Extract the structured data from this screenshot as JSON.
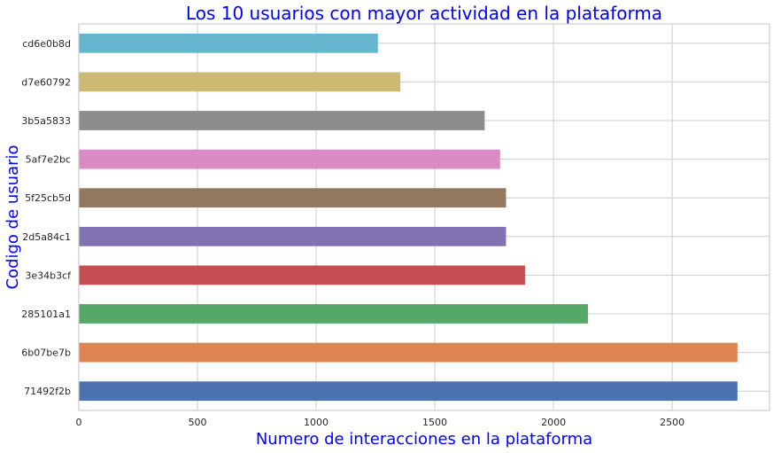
{
  "chart_data": {
    "type": "bar",
    "orientation": "horizontal",
    "title": "Los 10 usuarios con mayor actividad en la plataforma",
    "xlabel": "Numero de interacciones en la plataforma",
    "ylabel": "Codigo de usuario",
    "xlim": [
      0,
      2910
    ],
    "xticks": [
      0,
      500,
      1000,
      1500,
      2000,
      2500
    ],
    "grid": true,
    "legend": "none",
    "categories": [
      "71492f2b",
      "6b07be7b",
      "285101a1",
      "3e34b3cf",
      "2d5a84c1",
      "5f25cb5d",
      "5af7e2bc",
      "3b5a5833",
      "d7e60792",
      "cd6e0b8d"
    ],
    "values": [
      2775,
      2775,
      2145,
      1880,
      1800,
      1800,
      1775,
      1710,
      1355,
      1260
    ],
    "colors": [
      "#4c72b0",
      "#dd8452",
      "#55a868",
      "#c44e52",
      "#8172b3",
      "#937860",
      "#da8bc3",
      "#8c8c8c",
      "#ccb974",
      "#64b5cd"
    ]
  }
}
